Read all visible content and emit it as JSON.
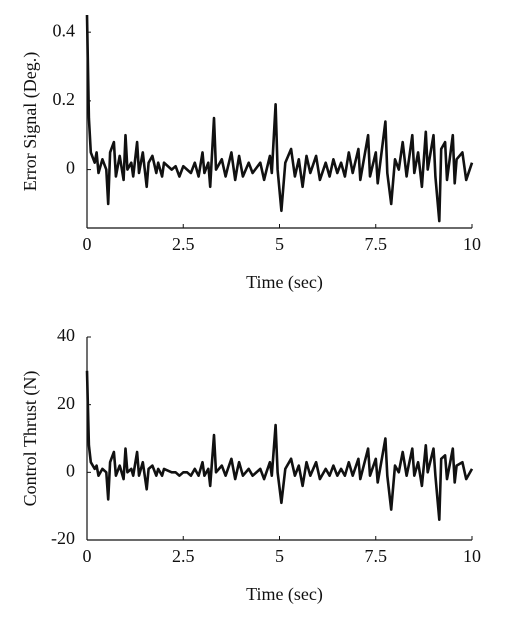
{
  "chart_data": [
    {
      "type": "line",
      "xlabel": "Time (sec)",
      "ylabel": "Error Signal (Deg.)",
      "xlim": [
        0,
        10
      ],
      "xticks": [
        0,
        2.5,
        5,
        7.5,
        10
      ],
      "ylim": [
        -0.17,
        0.45
      ],
      "yticks": [
        0,
        0.2,
        0.4
      ],
      "series": [
        {
          "color": "#111111",
          "x": [
            0,
            0.05,
            0.1,
            0.2,
            0.25,
            0.3,
            0.4,
            0.5,
            0.55,
            0.6,
            0.7,
            0.75,
            0.85,
            0.95,
            1.0,
            1.05,
            1.15,
            1.2,
            1.3,
            1.35,
            1.45,
            1.55,
            1.6,
            1.7,
            1.8,
            1.85,
            1.95,
            2.0,
            2.2,
            2.3,
            2.4,
            2.5,
            2.6,
            2.7,
            2.8,
            2.9,
            3.0,
            3.05,
            3.15,
            3.2,
            3.3,
            3.35,
            3.5,
            3.6,
            3.75,
            3.85,
            3.95,
            4.05,
            4.2,
            4.3,
            4.5,
            4.6,
            4.75,
            4.8,
            4.9,
            4.95,
            5.05,
            5.15,
            5.3,
            5.4,
            5.5,
            5.6,
            5.7,
            5.8,
            5.95,
            6.05,
            6.2,
            6.3,
            6.4,
            6.5,
            6.6,
            6.7,
            6.8,
            6.9,
            7.05,
            7.1,
            7.3,
            7.35,
            7.5,
            7.55,
            7.75,
            7.8,
            7.9,
            8.0,
            8.1,
            8.2,
            8.3,
            8.45,
            8.5,
            8.6,
            8.7,
            8.8,
            8.85,
            9.0,
            9.05,
            9.15,
            9.2,
            9.3,
            9.35,
            9.5,
            9.55,
            9.6,
            9.75,
            9.85,
            10
          ],
          "values": [
            0.45,
            0.15,
            0.05,
            0.02,
            0.05,
            -0.01,
            0.03,
            0,
            -0.1,
            0.05,
            0.08,
            -0.02,
            0.04,
            -0.03,
            0.1,
            0,
            0.02,
            -0.02,
            0.08,
            -0.01,
            0.05,
            -0.05,
            0.02,
            0.04,
            -0.01,
            0.02,
            -0.02,
            0.02,
            0,
            0.01,
            -0.02,
            0.01,
            0,
            -0.01,
            0.02,
            -0.02,
            0.05,
            -0.01,
            0.02,
            -0.05,
            0.15,
            0,
            0.03,
            -0.02,
            0.05,
            -0.03,
            0.04,
            -0.02,
            0.02,
            -0.01,
            0.02,
            -0.03,
            0.04,
            -0.01,
            0.19,
            0,
            -0.12,
            0.02,
            0.06,
            -0.02,
            0.03,
            -0.05,
            0.04,
            -0.01,
            0.04,
            -0.03,
            0.02,
            -0.02,
            0.03,
            -0.01,
            0.02,
            -0.02,
            0.05,
            -0.01,
            0.06,
            -0.03,
            0.1,
            -0.02,
            0.05,
            -0.04,
            0.14,
            -0.01,
            -0.1,
            0.03,
            0,
            0.08,
            -0.02,
            0.1,
            -0.01,
            0.05,
            -0.05,
            0.11,
            0,
            0.1,
            -0.02,
            -0.15,
            0.06,
            0.08,
            -0.03,
            0.1,
            -0.04,
            0.03,
            0.05,
            -0.03,
            0.02
          ]
        }
      ]
    },
    {
      "type": "line",
      "xlabel": "Time (sec)",
      "ylabel": "Control Thrust (N)",
      "xlim": [
        0,
        10
      ],
      "xticks": [
        0,
        2.5,
        5,
        7.5,
        10
      ],
      "ylim": [
        -20,
        40
      ],
      "yticks": [
        -20,
        0,
        20,
        40
      ],
      "series": [
        {
          "color": "#111111",
          "x": [
            0,
            0.05,
            0.1,
            0.2,
            0.25,
            0.3,
            0.4,
            0.5,
            0.55,
            0.6,
            0.7,
            0.75,
            0.85,
            0.95,
            1.0,
            1.05,
            1.15,
            1.2,
            1.3,
            1.35,
            1.45,
            1.55,
            1.6,
            1.7,
            1.8,
            1.85,
            1.95,
            2.0,
            2.2,
            2.3,
            2.4,
            2.5,
            2.6,
            2.7,
            2.8,
            2.9,
            3.0,
            3.05,
            3.15,
            3.2,
            3.3,
            3.35,
            3.5,
            3.6,
            3.75,
            3.85,
            3.95,
            4.05,
            4.2,
            4.3,
            4.5,
            4.6,
            4.75,
            4.8,
            4.9,
            4.95,
            5.05,
            5.15,
            5.3,
            5.4,
            5.5,
            5.6,
            5.7,
            5.8,
            5.95,
            6.05,
            6.2,
            6.3,
            6.4,
            6.5,
            6.6,
            6.7,
            6.8,
            6.9,
            7.05,
            7.1,
            7.3,
            7.35,
            7.5,
            7.55,
            7.75,
            7.8,
            7.9,
            8.0,
            8.1,
            8.2,
            8.3,
            8.45,
            8.5,
            8.6,
            8.7,
            8.8,
            8.85,
            9.0,
            9.05,
            9.15,
            9.2,
            9.3,
            9.35,
            9.5,
            9.55,
            9.6,
            9.75,
            9.85,
            10
          ],
          "values": [
            30,
            8,
            3,
            1,
            2,
            -1,
            1,
            0,
            -8,
            3,
            6,
            -1,
            2,
            -2,
            7,
            0,
            1,
            -1,
            6,
            -1,
            3,
            -5,
            1,
            2,
            -1,
            1,
            -1,
            1,
            0,
            0,
            -1,
            0,
            0,
            -1,
            1,
            -1,
            3,
            -1,
            1,
            -4,
            11,
            0,
            2,
            -1,
            4,
            -2,
            3,
            -1,
            1,
            -1,
            1,
            -2,
            3,
            -1,
            14,
            0,
            -9,
            1,
            4,
            -1,
            2,
            -4,
            3,
            -1,
            3,
            -2,
            1,
            -1,
            2,
            -1,
            1,
            -1,
            3,
            -1,
            4,
            -2,
            7,
            -1,
            4,
            -3,
            10,
            -1,
            -11,
            2,
            0,
            6,
            -1,
            7,
            -1,
            3,
            -4,
            8,
            0,
            7,
            -1,
            -14,
            4,
            5,
            -2,
            7,
            -3,
            2,
            3,
            -2,
            1
          ]
        }
      ]
    }
  ]
}
